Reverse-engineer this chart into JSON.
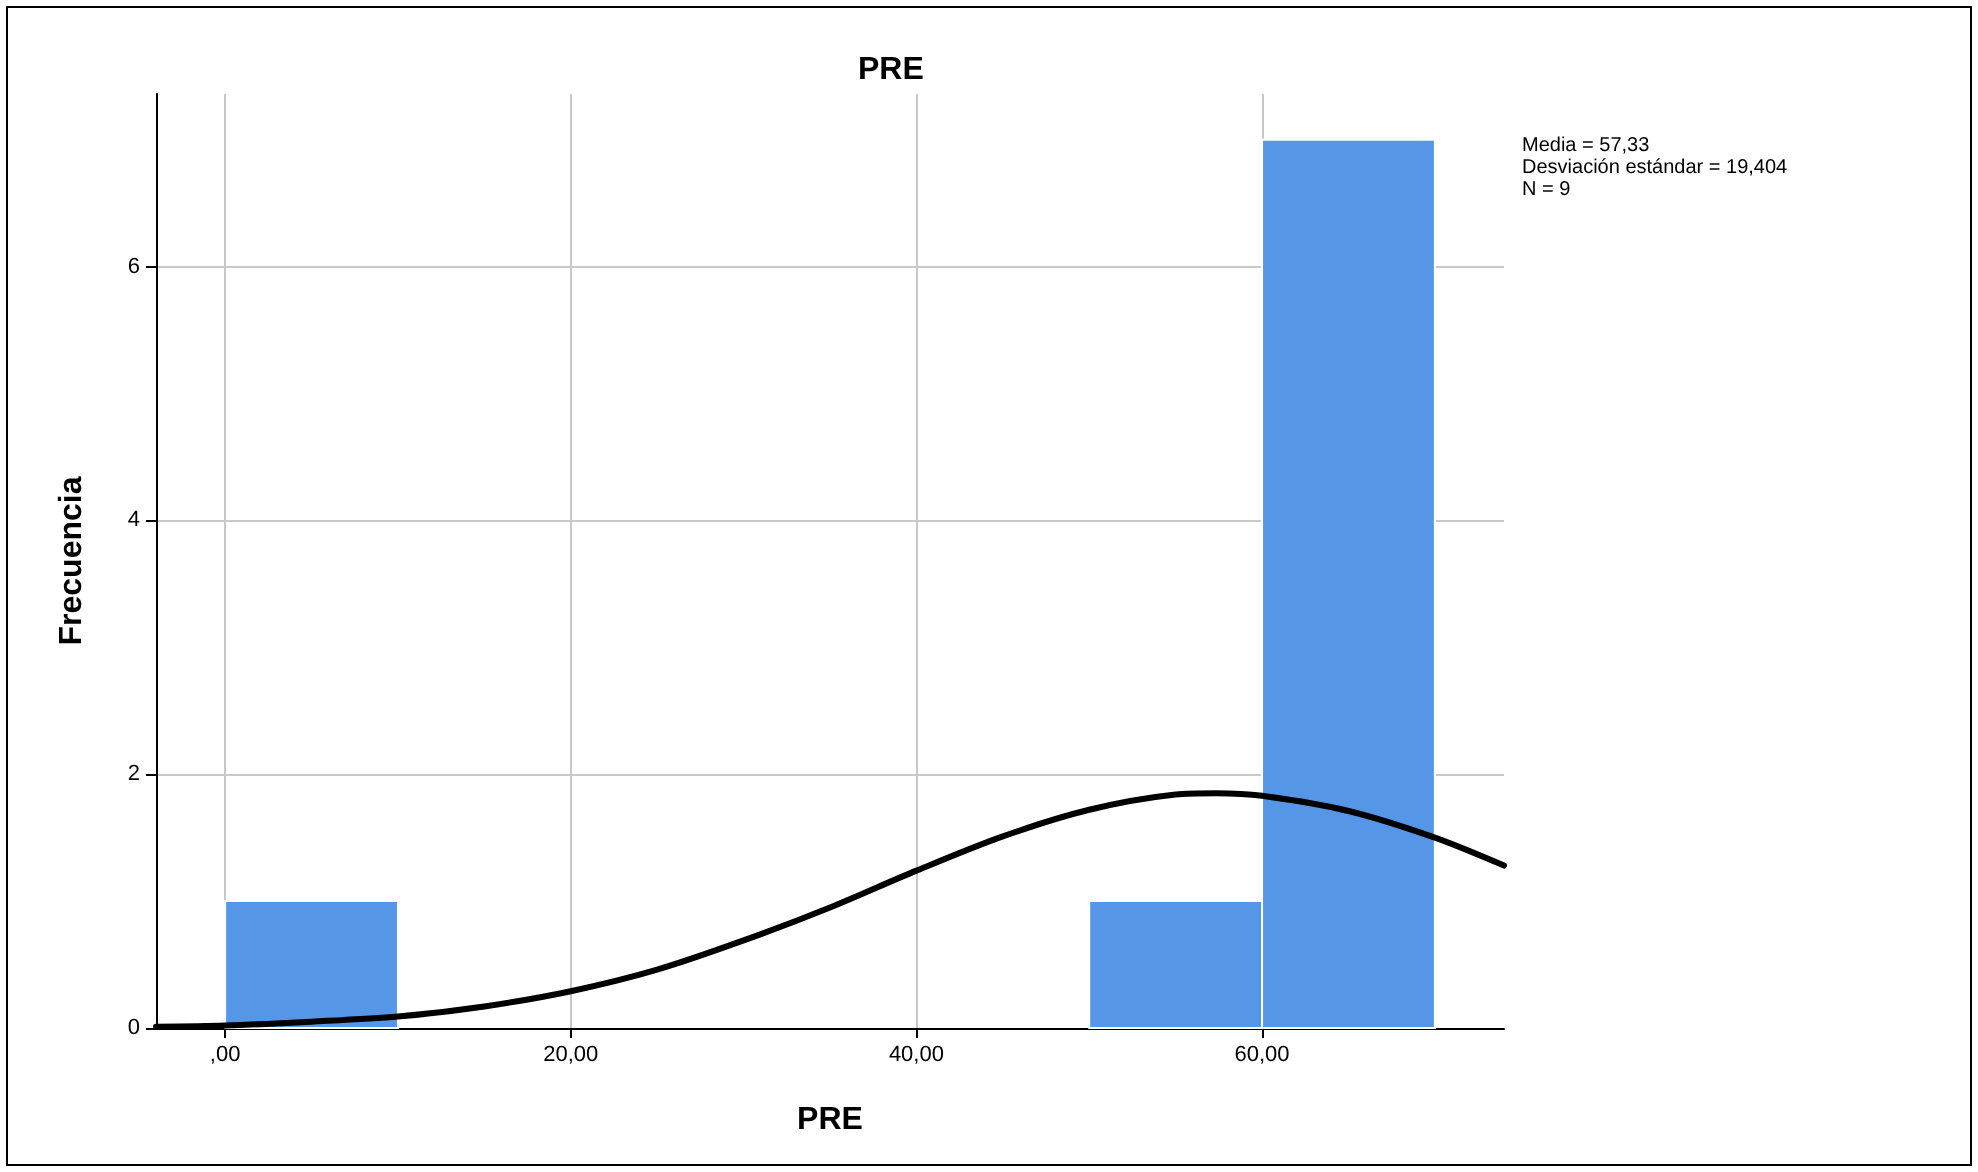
{
  "chart_data": {
    "type": "histogram",
    "title": "PRE",
    "xlabel": "PRE",
    "ylabel": "Frecuencia",
    "bins": [
      0,
      10,
      20,
      30,
      40,
      50,
      60,
      70
    ],
    "series": [
      {
        "color": "#5596e6",
        "values": [
          1,
          0,
          0,
          0,
          0,
          1,
          7
        ]
      },
      {
        "type": "line",
        "color": "#000000",
        "x": [
          -4,
          0,
          5,
          10,
          15,
          20,
          25,
          30,
          35,
          40,
          45,
          50,
          55,
          57.33,
          60,
          65,
          70,
          74
        ],
        "values": [
          0.01,
          0.02,
          0.05,
          0.09,
          0.17,
          0.29,
          0.46,
          0.69,
          0.95,
          1.24,
          1.51,
          1.72,
          1.84,
          1.85,
          1.83,
          1.71,
          1.5,
          1.28
        ]
      }
    ],
    "xlim": [
      -4,
      74
    ],
    "xticks": [
      {
        "value": 0,
        "label": ",00"
      },
      {
        "value": 20,
        "label": "20,00"
      },
      {
        "value": 40,
        "label": "40,00"
      },
      {
        "value": 60,
        "label": "60,00"
      }
    ],
    "ylim": [
      0,
      7.36
    ],
    "yticks": [
      0,
      2,
      4,
      6
    ],
    "grid": true,
    "line_style": "solid",
    "marker": "none",
    "annotations": [
      "Media = 57,33",
      "Desviación estándar = 19,404",
      "N = 9"
    ]
  }
}
